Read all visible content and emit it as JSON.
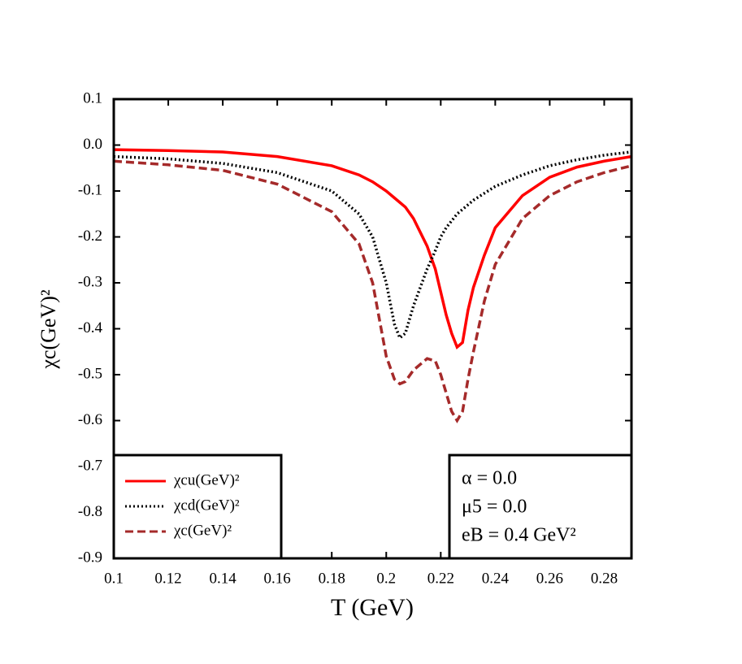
{
  "chart_data": {
    "type": "line",
    "xlabel": "T (GeV)",
    "ylabel": "χc(GeV)²",
    "x": [
      0.1,
      0.12,
      0.14,
      0.16,
      0.18,
      0.19,
      0.195,
      0.2,
      0.203,
      0.205,
      0.207,
      0.21,
      0.215,
      0.218,
      0.22,
      0.222,
      0.224,
      0.226,
      0.228,
      0.23,
      0.232,
      0.236,
      0.24,
      0.25,
      0.26,
      0.27,
      0.28,
      0.29
    ],
    "series": [
      {
        "name": "χcu(GeV)²",
        "color": "#ff0000",
        "dash": "solid",
        "values": [
          -0.01,
          -0.012,
          -0.015,
          -0.025,
          -0.045,
          -0.065,
          -0.08,
          -0.1,
          -0.115,
          -0.125,
          -0.135,
          -0.16,
          -0.22,
          -0.27,
          -0.32,
          -0.37,
          -0.41,
          -0.44,
          -0.43,
          -0.36,
          -0.31,
          -0.24,
          -0.18,
          -0.11,
          -0.07,
          -0.048,
          -0.035,
          -0.025
        ]
      },
      {
        "name": "χcd(GeV)²",
        "color": "#000000",
        "dash": "dotted",
        "values": [
          -0.025,
          -0.03,
          -0.04,
          -0.06,
          -0.1,
          -0.15,
          -0.2,
          -0.3,
          -0.39,
          -0.42,
          -0.41,
          -0.35,
          -0.27,
          -0.23,
          -0.2,
          -0.18,
          -0.165,
          -0.15,
          -0.14,
          -0.13,
          -0.12,
          -0.105,
          -0.09,
          -0.065,
          -0.045,
          -0.032,
          -0.022,
          -0.015
        ]
      },
      {
        "name": "χc(GeV)²",
        "color": "#a52a2a",
        "dash": "dashed",
        "values": [
          -0.035,
          -0.043,
          -0.055,
          -0.085,
          -0.145,
          -0.215,
          -0.3,
          -0.46,
          -0.51,
          -0.52,
          -0.515,
          -0.49,
          -0.465,
          -0.47,
          -0.5,
          -0.54,
          -0.58,
          -0.6,
          -0.58,
          -0.51,
          -0.45,
          -0.34,
          -0.26,
          -0.16,
          -0.11,
          -0.08,
          -0.06,
          -0.045
        ]
      }
    ],
    "xlim": [
      0.1,
      0.29
    ],
    "xticks": [
      0.1,
      0.12,
      0.14,
      0.16,
      0.18,
      0.2,
      0.22,
      0.24,
      0.26,
      0.28
    ],
    "ylim": [
      -0.9,
      0.1
    ],
    "yticks": [
      0.1,
      {
        "value": 0,
        "label": "0.0"
      },
      -0.1,
      -0.2,
      -0.3,
      -0.4,
      -0.5,
      -0.6,
      -0.7,
      -0.8,
      -0.9
    ],
    "legend": "lower left",
    "annotations": [
      "α = 0.0",
      "μ5 = 0.0",
      "eB = 0.4 GeV²"
    ]
  }
}
